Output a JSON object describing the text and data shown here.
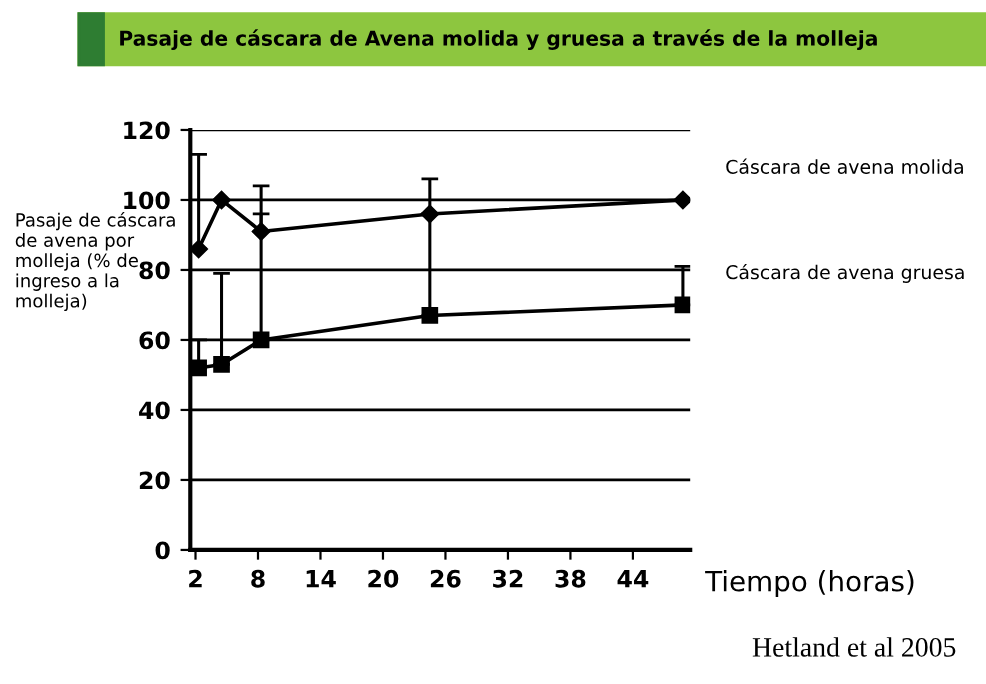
{
  "chart_data": {
    "type": "line",
    "title": "Pasaje de cáscara de Avena molida y gruesa a través de la molleja",
    "ylabel": "Pasaje de cáscara de avena por molleja (% de ingreso a la molleja)",
    "xlabel": "Tiempo (horas)",
    "annotations": [
      "Hetland et al 2005"
    ],
    "series": [
      {
        "name": "Cáscara de avena molida",
        "color": "#000000",
        "marker": "diamond",
        "x": [
          2.3,
          4.5,
          8.3,
          24.5,
          48.8
        ],
        "values": [
          86,
          100,
          91,
          96,
          100
        ],
        "errors": [
          [
            86,
            113
          ],
          null,
          [
            91,
            104
          ],
          [
            96,
            106
          ],
          null
        ]
      },
      {
        "name": "Cáscara de avena gruesa",
        "color": "#000000",
        "marker": "square",
        "x": [
          2.3,
          4.5,
          8.3,
          24.5,
          48.8
        ],
        "values": [
          52,
          53,
          60,
          67,
          70
        ],
        "errors": [
          [
            52,
            60
          ],
          [
            53,
            79
          ],
          [
            60,
            96
          ],
          [
            67,
            96
          ],
          [
            70,
            81
          ]
        ]
      }
    ],
    "xlim": [
      1.5,
      49.5
    ],
    "xticks": [
      2,
      8,
      14,
      20,
      26,
      32,
      38,
      44
    ],
    "ylim": [
      0,
      120
    ],
    "yticks": [
      0,
      20,
      40,
      60,
      80,
      100,
      120
    ],
    "grid": "y",
    "legend": false,
    "line_style": "solid"
  }
}
